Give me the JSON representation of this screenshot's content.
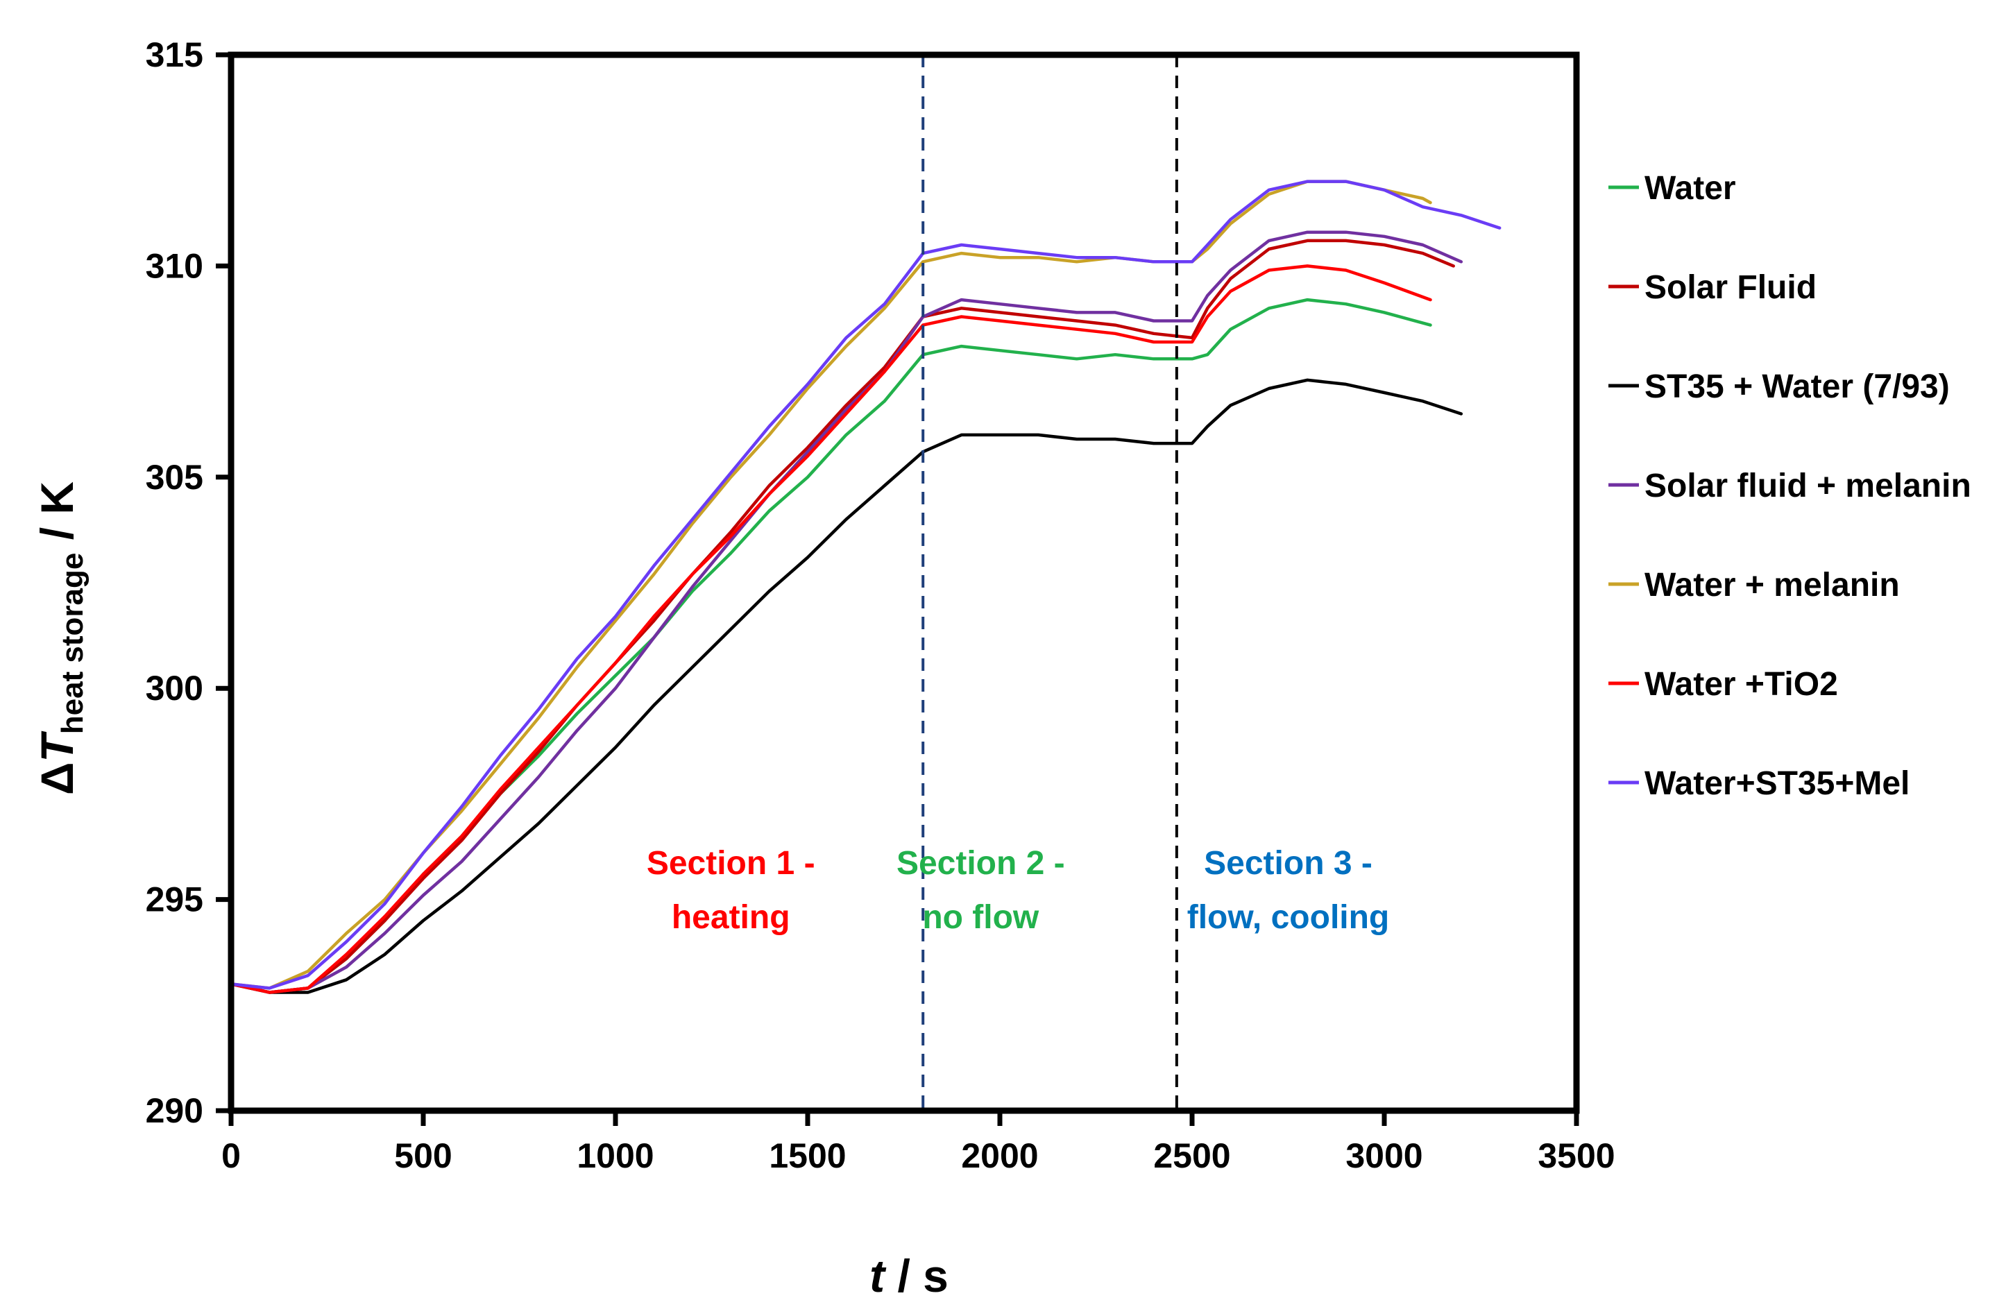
{
  "chart_data": {
    "type": "line",
    "title": "",
    "xlabel_italic": "t",
    "xlabel_rest": " / s",
    "ylabel_delta": "Δ",
    "ylabel_italic": "T",
    "ylabel_sub": "heat storage",
    "ylabel_rest": " / K",
    "xlim": [
      0,
      3500
    ],
    "ylim": [
      290,
      315
    ],
    "xticks": [
      0,
      500,
      1000,
      1500,
      2000,
      2500,
      3000,
      3500
    ],
    "yticks": [
      290,
      295,
      300,
      305,
      310,
      315
    ],
    "grid": false,
    "legend_position": "right",
    "vlines": [
      {
        "x": 1800,
        "color": "#1f3f7a",
        "style": "dashed"
      },
      {
        "x": 2460,
        "color": "#000000",
        "style": "dashed"
      }
    ],
    "annotations": [
      {
        "lines": [
          "Section 1 -",
          "heating"
        ],
        "color": "#ff0000",
        "x": 1300,
        "y": 295.6
      },
      {
        "lines": [
          "Section 2 -",
          "no flow"
        ],
        "color": "#22b14c",
        "x": 1950,
        "y": 295.6
      },
      {
        "lines": [
          "Section 3 -",
          "flow, cooling"
        ],
        "color": "#0070c0",
        "x": 2750,
        "y": 295.6
      }
    ],
    "series": [
      {
        "name": "Water",
        "color": "#22b14c",
        "x": [
          0,
          100,
          200,
          300,
          400,
          500,
          600,
          700,
          800,
          900,
          1000,
          1100,
          1200,
          1300,
          1400,
          1500,
          1600,
          1700,
          1800,
          1900,
          2000,
          2100,
          2200,
          2300,
          2400,
          2500,
          2540,
          2600,
          2700,
          2800,
          2900,
          3000,
          3120
        ],
        "y": [
          293.0,
          292.8,
          292.9,
          293.6,
          294.5,
          295.6,
          296.5,
          297.5,
          298.4,
          299.4,
          300.3,
          301.2,
          302.3,
          303.2,
          304.2,
          305.0,
          306.0,
          306.8,
          307.9,
          308.1,
          308.0,
          307.9,
          307.8,
          307.9,
          307.8,
          307.8,
          307.9,
          308.5,
          309.0,
          309.2,
          309.1,
          308.9,
          308.6
        ]
      },
      {
        "name": "Solar Fluid",
        "color": "#c00000",
        "x": [
          0,
          100,
          200,
          300,
          400,
          500,
          600,
          700,
          800,
          900,
          1000,
          1100,
          1200,
          1300,
          1400,
          1500,
          1600,
          1700,
          1800,
          1900,
          2000,
          2100,
          2200,
          2300,
          2400,
          2500,
          2540,
          2600,
          2700,
          2800,
          2900,
          3000,
          3100,
          3180
        ],
        "y": [
          293.0,
          292.8,
          292.9,
          293.6,
          294.5,
          295.5,
          296.4,
          297.5,
          298.5,
          299.6,
          300.6,
          301.6,
          302.7,
          303.7,
          304.8,
          305.7,
          306.7,
          307.6,
          308.8,
          309.0,
          308.9,
          308.8,
          308.7,
          308.6,
          308.4,
          308.3,
          309.0,
          309.7,
          310.4,
          310.6,
          310.6,
          310.5,
          310.3,
          310.0
        ]
      },
      {
        "name": "ST35 + Water (7/93)",
        "color": "#000000",
        "x": [
          0,
          100,
          200,
          300,
          400,
          500,
          600,
          700,
          800,
          900,
          1000,
          1100,
          1200,
          1300,
          1400,
          1500,
          1600,
          1700,
          1800,
          1900,
          2000,
          2100,
          2200,
          2300,
          2400,
          2500,
          2540,
          2600,
          2700,
          2800,
          2900,
          3000,
          3100,
          3200
        ],
        "y": [
          293.0,
          292.8,
          292.8,
          293.1,
          293.7,
          294.5,
          295.2,
          296.0,
          296.8,
          297.7,
          298.6,
          299.6,
          300.5,
          301.4,
          302.3,
          303.1,
          304.0,
          304.8,
          305.6,
          306.0,
          306.0,
          306.0,
          305.9,
          305.9,
          305.8,
          305.8,
          306.2,
          306.7,
          307.1,
          307.3,
          307.2,
          307.0,
          306.8,
          306.5
        ]
      },
      {
        "name": "Solar fluid + melanin",
        "color": "#7030a0",
        "x": [
          0,
          100,
          200,
          300,
          400,
          500,
          600,
          700,
          800,
          900,
          1000,
          1100,
          1200,
          1300,
          1400,
          1500,
          1600,
          1700,
          1800,
          1900,
          2000,
          2100,
          2200,
          2300,
          2400,
          2500,
          2540,
          2600,
          2700,
          2800,
          2900,
          3000,
          3100,
          3200
        ],
        "y": [
          293.0,
          292.8,
          292.9,
          293.4,
          294.2,
          295.1,
          295.9,
          296.9,
          297.9,
          299.0,
          300.0,
          301.2,
          302.4,
          303.5,
          304.6,
          305.6,
          306.6,
          307.5,
          308.8,
          309.2,
          309.1,
          309.0,
          308.9,
          308.9,
          308.7,
          308.7,
          309.3,
          309.9,
          310.6,
          310.8,
          310.8,
          310.7,
          310.5,
          310.1
        ]
      },
      {
        "name": "Water + melanin",
        "color": "#c9a227",
        "x": [
          0,
          100,
          200,
          300,
          400,
          500,
          600,
          700,
          800,
          900,
          1000,
          1100,
          1200,
          1300,
          1400,
          1500,
          1600,
          1700,
          1800,
          1900,
          2000,
          2100,
          2200,
          2300,
          2400,
          2500,
          2540,
          2600,
          2700,
          2800,
          2900,
          3000,
          3100,
          3120
        ],
        "y": [
          293.0,
          292.9,
          293.3,
          294.2,
          295.0,
          296.1,
          297.1,
          298.2,
          299.3,
          300.5,
          301.6,
          302.7,
          303.9,
          305.0,
          306.0,
          307.1,
          308.1,
          309.0,
          310.1,
          310.3,
          310.2,
          310.2,
          310.1,
          310.2,
          310.1,
          310.1,
          310.4,
          311.0,
          311.7,
          312.0,
          312.0,
          311.8,
          311.6,
          311.5
        ]
      },
      {
        "name": "Water +TiO2",
        "color": "#ff0000",
        "x": [
          0,
          100,
          200,
          300,
          400,
          500,
          600,
          700,
          800,
          900,
          1000,
          1100,
          1200,
          1300,
          1400,
          1500,
          1600,
          1700,
          1800,
          1900,
          2000,
          2100,
          2200,
          2300,
          2400,
          2500,
          2540,
          2600,
          2700,
          2800,
          2900,
          3000,
          3120
        ],
        "y": [
          293.0,
          292.8,
          292.9,
          293.7,
          294.6,
          295.6,
          296.5,
          297.6,
          298.6,
          299.6,
          300.6,
          301.7,
          302.7,
          303.6,
          304.6,
          305.5,
          306.5,
          307.5,
          308.6,
          308.8,
          308.7,
          308.6,
          308.5,
          308.4,
          308.2,
          308.2,
          308.8,
          309.4,
          309.9,
          310.0,
          309.9,
          309.6,
          309.2
        ]
      },
      {
        "name": "Water+ST35+Mel",
        "color": "#6a3cf5",
        "x": [
          0,
          100,
          200,
          300,
          400,
          500,
          600,
          700,
          800,
          900,
          1000,
          1100,
          1200,
          1300,
          1400,
          1500,
          1600,
          1700,
          1800,
          1900,
          2000,
          2100,
          2200,
          2300,
          2400,
          2500,
          2540,
          2600,
          2700,
          2800,
          2900,
          3000,
          3100,
          3200,
          3300
        ],
        "y": [
          293.0,
          292.9,
          293.2,
          294.0,
          294.9,
          296.1,
          297.2,
          298.4,
          299.5,
          300.7,
          301.7,
          302.9,
          304.0,
          305.1,
          306.2,
          307.2,
          308.3,
          309.1,
          310.3,
          310.5,
          310.4,
          310.3,
          310.2,
          310.2,
          310.1,
          310.1,
          310.5,
          311.1,
          311.8,
          312.0,
          312.0,
          311.8,
          311.4,
          311.2,
          310.9
        ]
      }
    ]
  }
}
